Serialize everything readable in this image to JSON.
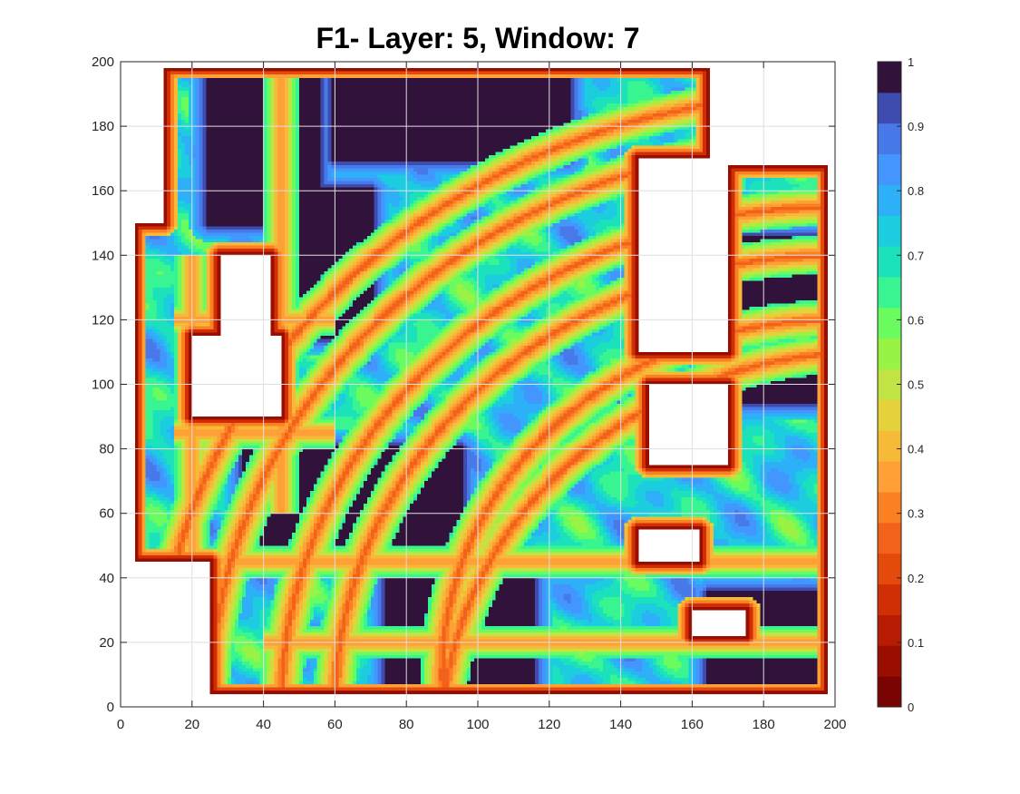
{
  "chart_data": {
    "type": "heatmap",
    "title": "F1- Layer: 5, Window: 7",
    "xlabel": "",
    "ylabel": "",
    "xlim": [
      0,
      200
    ],
    "ylim": [
      0,
      200
    ],
    "x_ticks": [
      "0",
      "20",
      "40",
      "60",
      "80",
      "100",
      "120",
      "140",
      "160",
      "180",
      "200"
    ],
    "y_ticks": [
      "0",
      "20",
      "40",
      "60",
      "80",
      "100",
      "120",
      "140",
      "160",
      "180",
      "200"
    ],
    "grid": true,
    "grid_resolution": 200,
    "valid_region": {
      "x": [
        4,
        198
      ],
      "y": [
        4,
        198
      ]
    },
    "colorbar": {
      "range": [
        0,
        1
      ],
      "levels": 20,
      "ticks": [
        "0",
        "0.1",
        "0.2",
        "0.3",
        "0.4",
        "0.5",
        "0.6",
        "0.7",
        "0.8",
        "0.9",
        "1"
      ],
      "colors": [
        "#7a0403",
        "#9a0d01",
        "#b71c03",
        "#d02f05",
        "#e44a0c",
        "#f3621a",
        "#fb8022",
        "#fea035",
        "#f7ba38",
        "#e5d23b",
        "#c2e344",
        "#99f344",
        "#6afc5e",
        "#38f592",
        "#1be2bb",
        "#1ccde0",
        "#2eb0f8",
        "#4396fd",
        "#4779e8",
        "#3e4cb0"
      ],
      "top_color": "#30123b"
    },
    "nan_color": "#ffffff",
    "dark_regions": [
      {
        "x": [
          25,
          55
        ],
        "y": [
          150,
          198
        ]
      },
      {
        "x": [
          45,
          70
        ],
        "y": [
          115,
          160
        ]
      },
      {
        "x": [
          60,
          125
        ],
        "y": [
          170,
          198
        ]
      },
      {
        "x": [
          35,
          95
        ],
        "y": [
          45,
          80
        ]
      },
      {
        "x": [
          75,
          115
        ],
        "y": [
          5,
          40
        ]
      },
      {
        "x": [
          175,
          198
        ],
        "y": [
          95,
          145
        ]
      },
      {
        "x": [
          165,
          198
        ],
        "y": [
          5,
          35
        ]
      }
    ],
    "white_regions": [
      {
        "x": [
          165,
          198
        ],
        "y": [
          168,
          198
        ]
      },
      {
        "x": [
          145,
          170
        ],
        "y": [
          110,
          170
        ]
      },
      {
        "x": [
          28,
          42
        ],
        "y": [
          115,
          140
        ]
      },
      {
        "x": [
          20,
          45
        ],
        "y": [
          90,
          115
        ]
      },
      {
        "x": [
          148,
          170
        ],
        "y": [
          75,
          100
        ]
      },
      {
        "x": [
          145,
          162
        ],
        "y": [
          45,
          55
        ]
      },
      {
        "x": [
          160,
          175
        ],
        "y": [
          22,
          30
        ]
      },
      {
        "x": [
          0,
          12
        ],
        "y": [
          150,
          198
        ]
      },
      {
        "x": [
          0,
          25
        ],
        "y": [
          0,
          45
        ]
      }
    ],
    "ridges": [
      {
        "cx": 200,
        "cy": 0,
        "r": 140
      },
      {
        "cx": 200,
        "cy": 0,
        "r": 155
      },
      {
        "cx": 200,
        "cy": 0,
        "r": 175
      },
      {
        "cx": 200,
        "cy": 0,
        "r": 190
      },
      {
        "cx": 210,
        "cy": -10,
        "r": 120
      },
      {
        "cx": 200,
        "cy": 10,
        "r": 110
      }
    ],
    "roads": [
      {
        "x": 20,
        "y": [
          40,
          140
        ],
        "orient": "v"
      },
      {
        "x": 45,
        "y": [
          60,
          200
        ],
        "orient": "v"
      },
      {
        "y": 85,
        "x": [
          15,
          60
        ],
        "orient": "h"
      },
      {
        "y": 120,
        "x": [
          15,
          60
        ],
        "orient": "h"
      },
      {
        "x": 170,
        "y": [
          160,
          200
        ],
        "orient": "v"
      },
      {
        "y": 45,
        "x": [
          15,
          200
        ],
        "orient": "h"
      },
      {
        "y": 20,
        "x": [
          40,
          200
        ],
        "orient": "h"
      }
    ]
  }
}
